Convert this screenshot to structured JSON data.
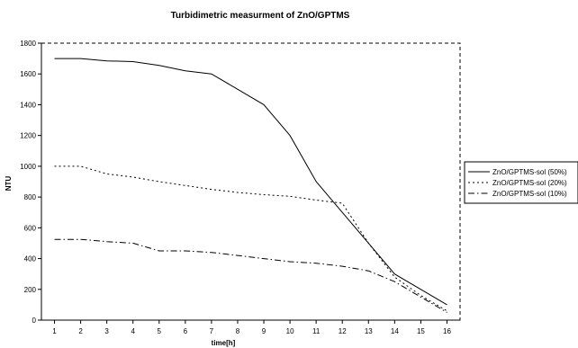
{
  "chart_data": {
    "type": "line",
    "title": "Turbidimetric measurment of ZnO/GPTMS",
    "xlabel": "time[h]",
    "ylabel": "NTU",
    "x": [
      1,
      2,
      3,
      4,
      5,
      6,
      7,
      8,
      9,
      10,
      11,
      12,
      13,
      14,
      15,
      16
    ],
    "xlim": [
      0.5,
      16.5
    ],
    "ylim": [
      0,
      1800
    ],
    "yticks": [
      0,
      200,
      400,
      600,
      800,
      1000,
      1200,
      1400,
      1600,
      1800
    ],
    "grid": false,
    "legend_position": "right",
    "series": [
      {
        "name": "ZnO/GPTMS-sol (50%)",
        "line_style": "solid",
        "color": "#000000",
        "values": [
          1700,
          1700,
          1685,
          1680,
          1655,
          1620,
          1600,
          1500,
          1400,
          1200,
          900,
          700,
          500,
          300,
          200,
          100
        ]
      },
      {
        "name": "ZnO/GPTMS-sol (20%)",
        "line_style": "dotted",
        "color": "#000000",
        "values": [
          1000,
          1000,
          950,
          930,
          900,
          875,
          850,
          830,
          815,
          805,
          780,
          760,
          500,
          280,
          160,
          60
        ]
      },
      {
        "name": "ZnO/GPTMS-sol (10%)",
        "line_style": "dash-dot",
        "color": "#000000",
        "values": [
          525,
          525,
          510,
          500,
          450,
          450,
          440,
          420,
          400,
          380,
          370,
          350,
          320,
          250,
          150,
          50
        ]
      }
    ]
  }
}
